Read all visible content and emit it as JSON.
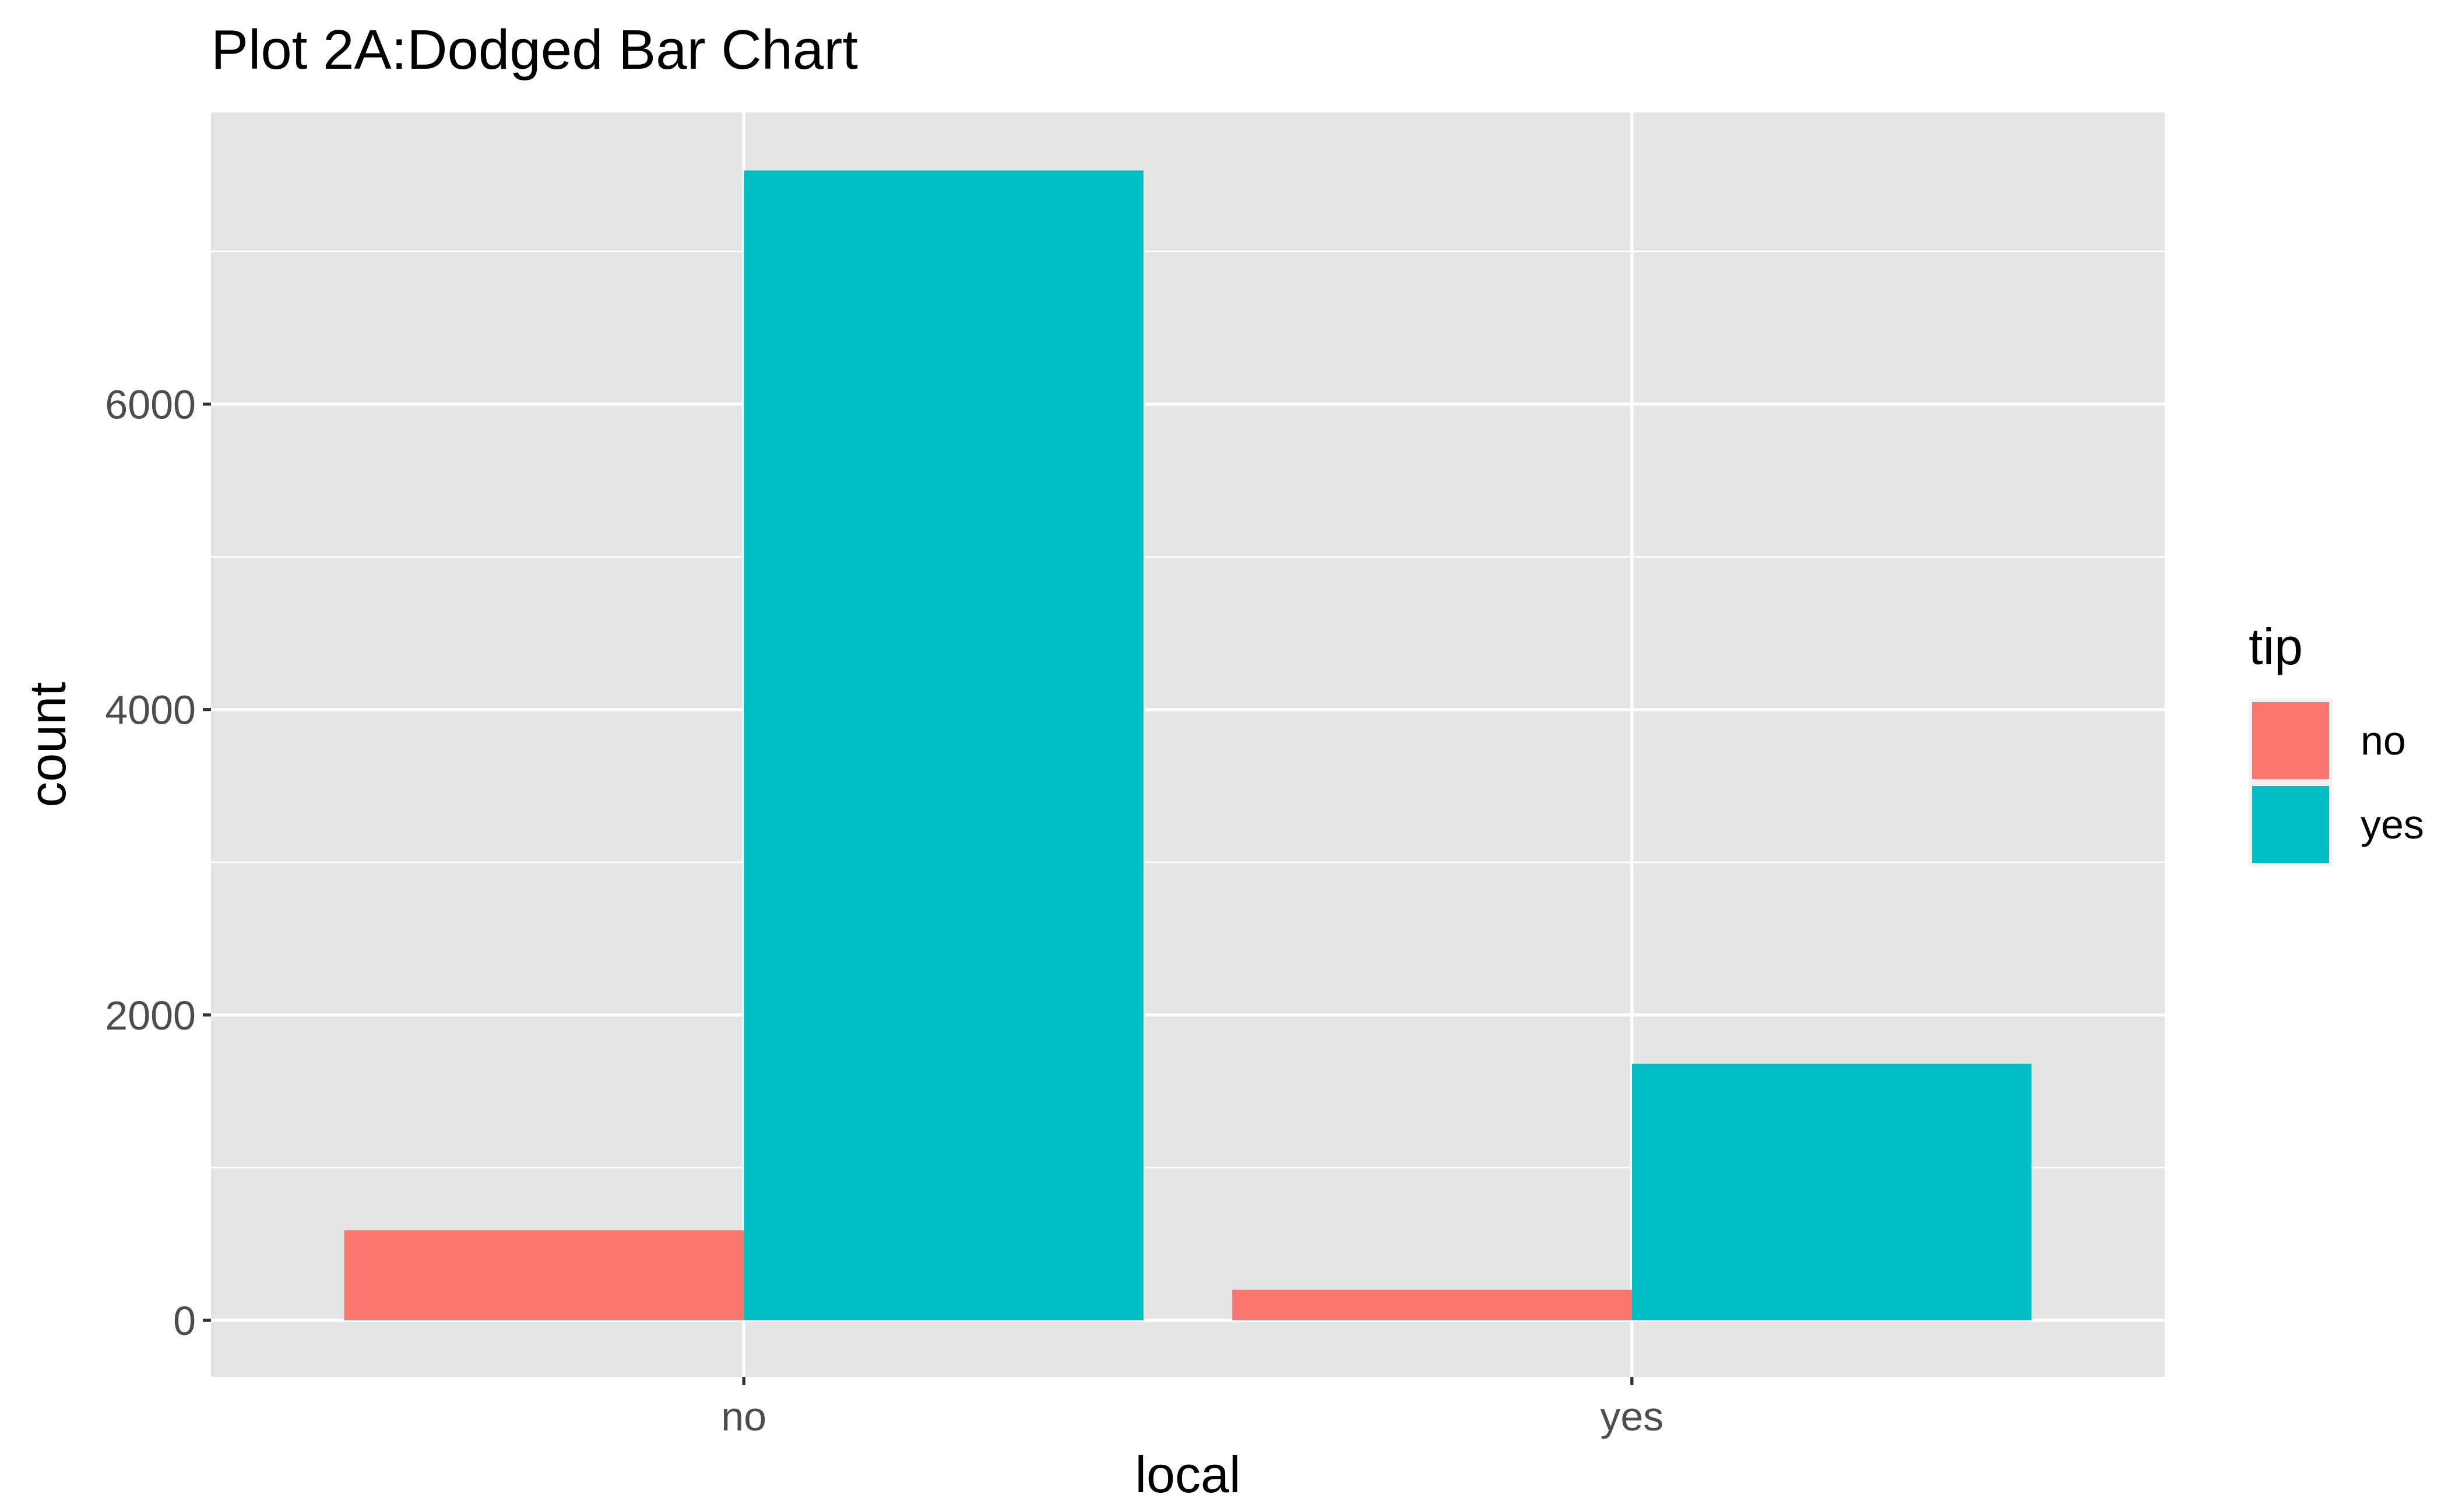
{
  "chart_data": {
    "type": "bar",
    "title": "Plot 2A:Dodged Bar Chart",
    "xlabel": "local",
    "ylabel": "count",
    "categories": [
      "no",
      "yes"
    ],
    "series": [
      {
        "name": "no",
        "color": "#F8766D",
        "values": [
          590,
          200
        ]
      },
      {
        "name": "yes",
        "color": "#00BFC4",
        "values": [
          7530,
          1680
        ]
      }
    ],
    "y_ticks": [
      0,
      2000,
      4000,
      6000
    ],
    "y_tick_labels": [
      "0",
      "2000",
      "4000",
      "6000"
    ],
    "ylim": [
      -370,
      7910
    ],
    "legend": {
      "title": "tip",
      "placement": "right"
    },
    "grid": true,
    "panel_background": "#E5E5E5"
  }
}
